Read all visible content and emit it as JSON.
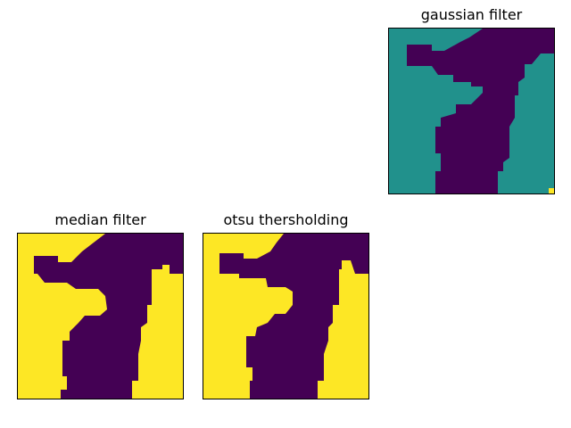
{
  "colors": {
    "dark": "#440154",
    "teal": "#21918c",
    "yellow": "#fde725"
  },
  "panels": [
    {
      "title": "gaussian filter",
      "fill": "teal",
      "dots": true
    },
    {
      "title": "median filter",
      "fill": "yellow",
      "dots": false
    },
    {
      "title": "otsu thersholding",
      "fill": "yellow",
      "dots": false
    }
  ]
}
